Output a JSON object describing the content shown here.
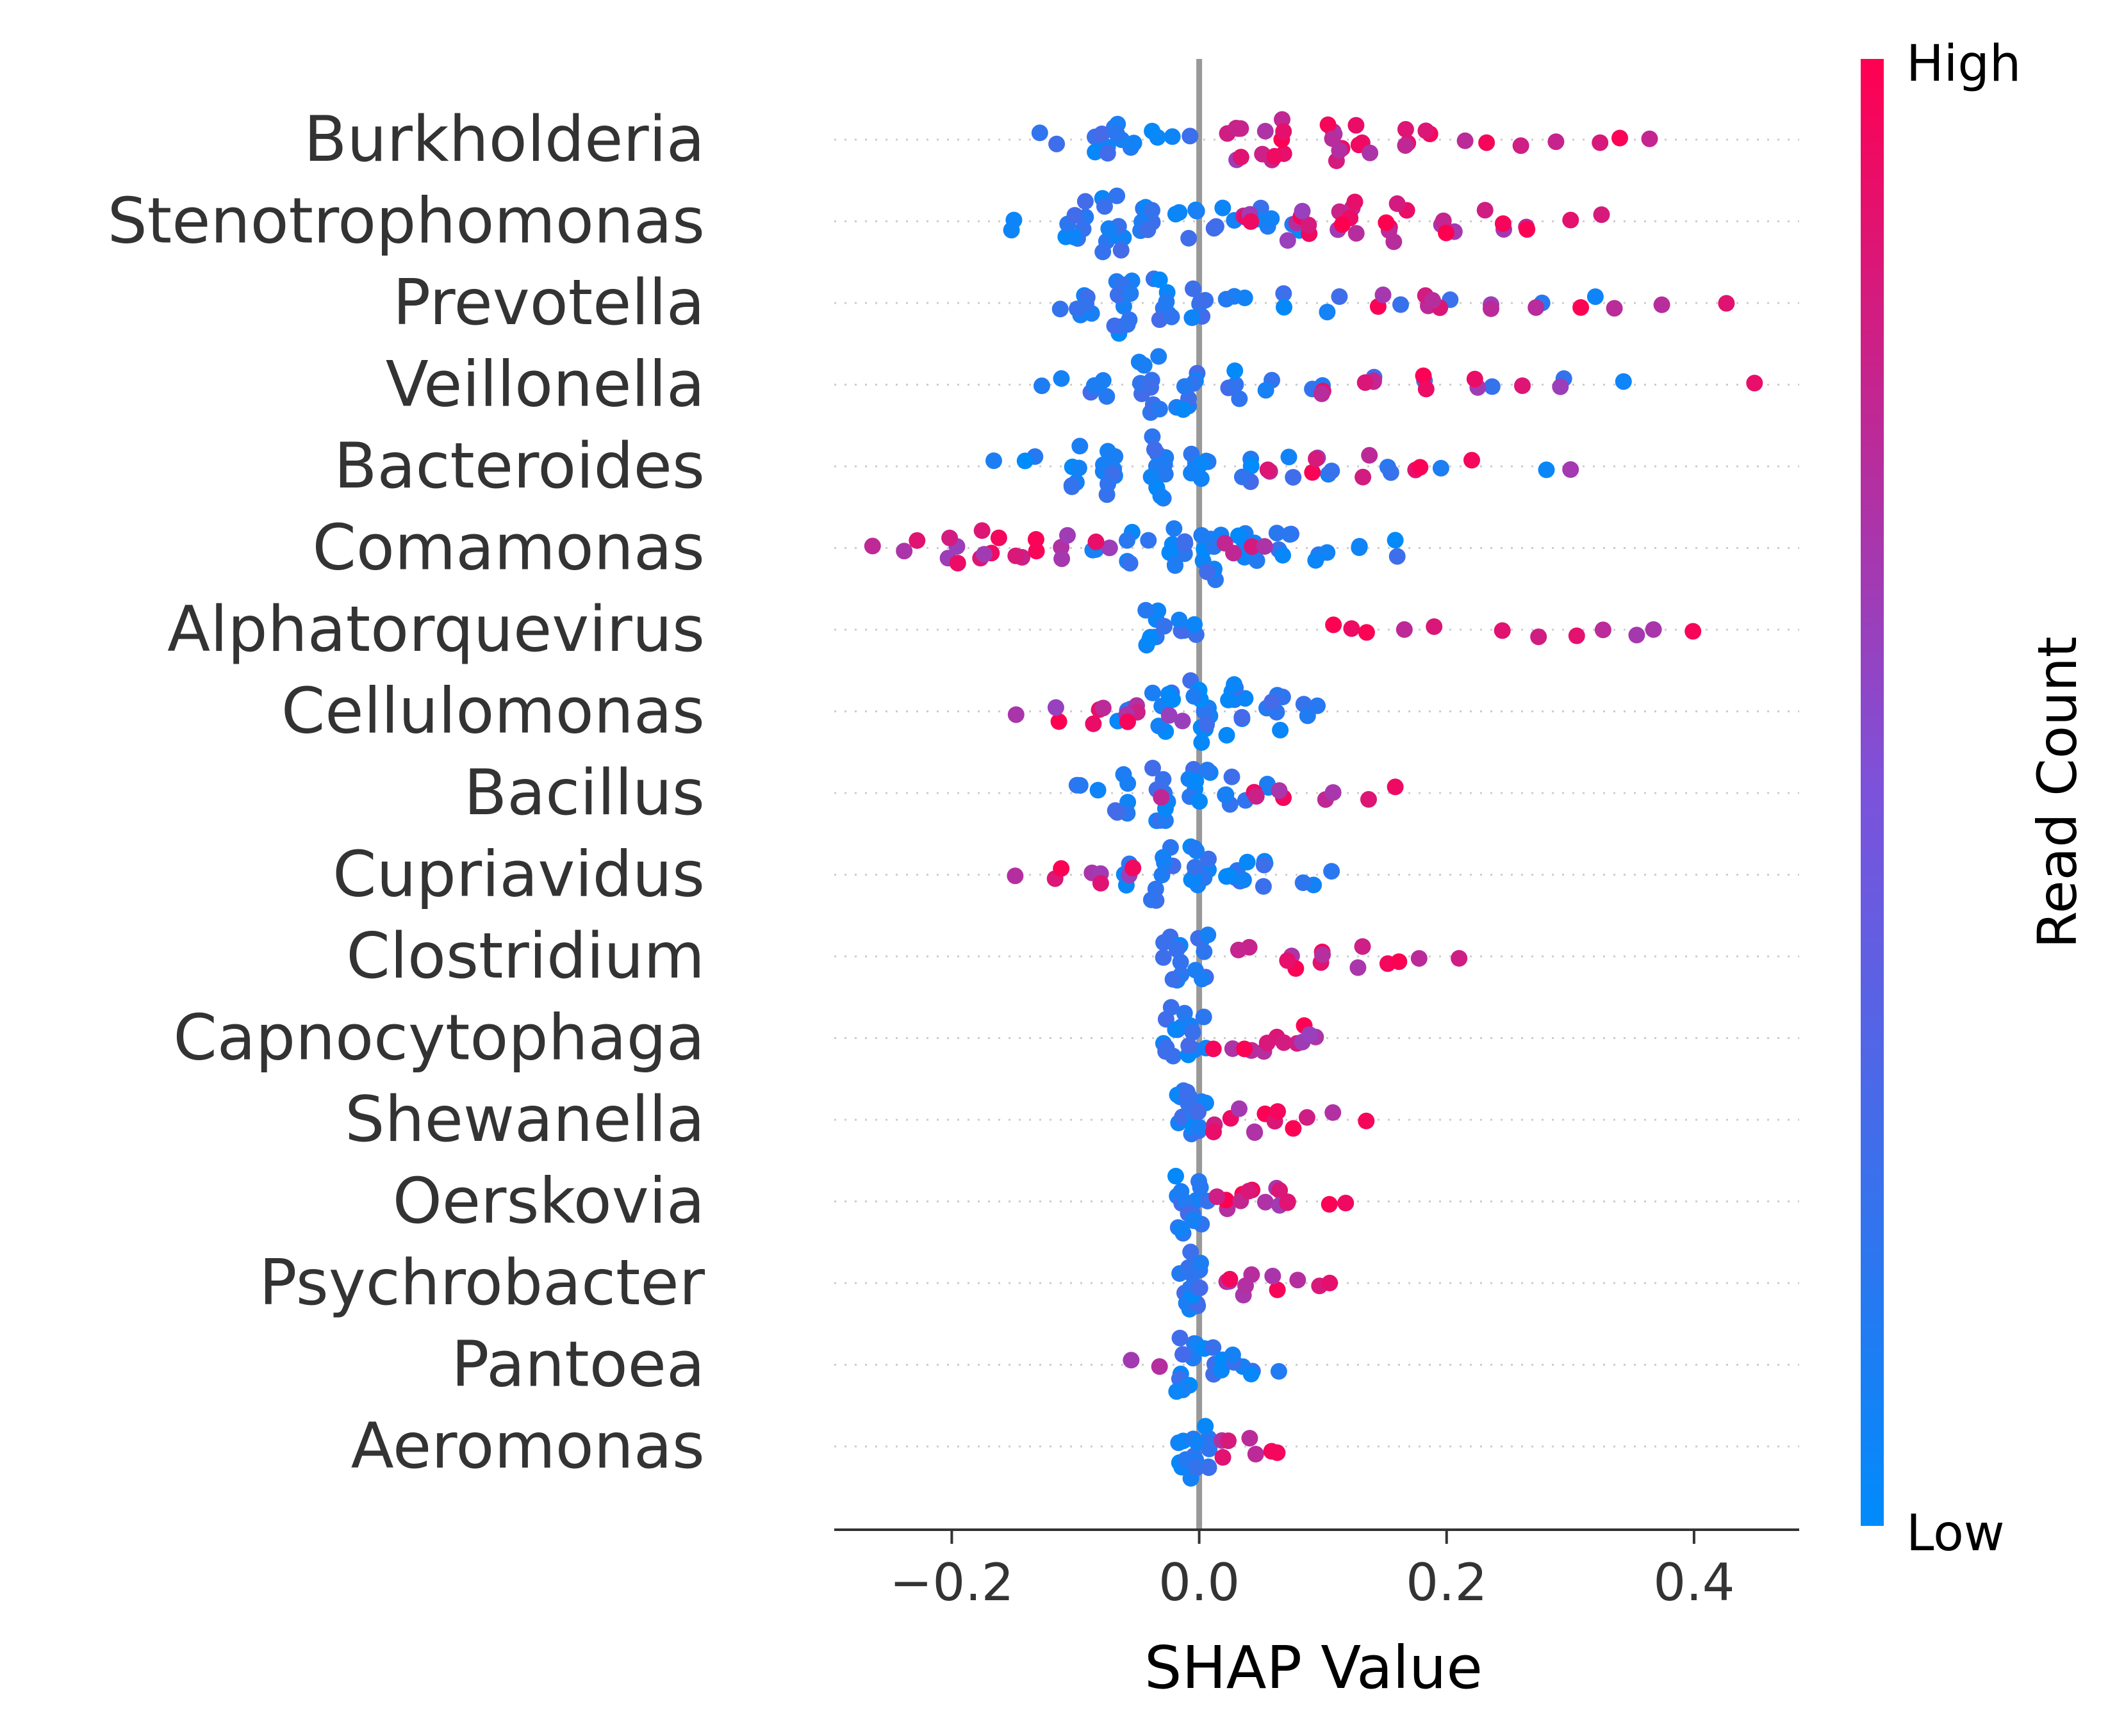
{
  "chart_data": {
    "type": "scatter",
    "subtype": "shap-beeswarm",
    "xlabel": "SHAP Value",
    "ylabel": "",
    "xlim": [
      -0.295,
      0.485
    ],
    "xticks": [
      -0.2,
      0.0,
      0.2,
      0.4
    ],
    "xtick_labels": [
      "−0.2",
      "0.0",
      "0.2",
      "0.4"
    ],
    "grid": false,
    "zero_line": 0.0,
    "colorbar": {
      "label": "Read Count",
      "high_label": "High",
      "low_label": "Low",
      "low_color": "#008bfb",
      "high_color": "#ff0051"
    },
    "features": [
      {
        "name": "Burkholderia",
        "low": [
          [
            -0.12,
            0.1
          ],
          [
            -0.08,
            0.3
          ],
          [
            -0.06,
            0.3
          ],
          [
            -0.03,
            0.15
          ],
          [
            -0.01,
            0.05
          ]
        ],
        "high": [
          [
            0.03,
            0.3
          ],
          [
            0.06,
            0.4
          ],
          [
            0.11,
            0.35
          ],
          [
            0.13,
            0.2
          ],
          [
            0.16,
            0.15
          ],
          [
            0.18,
            0.08
          ],
          [
            0.21,
            0.05
          ],
          [
            0.24,
            0.03
          ],
          [
            0.26,
            0.02
          ],
          [
            0.28,
            0.02
          ],
          [
            0.32,
            0.02
          ],
          [
            0.34,
            0.02
          ],
          [
            0.37,
            0.02
          ]
        ]
      },
      {
        "name": "Stenotrophomonas",
        "low": [
          [
            -0.15,
            0.1
          ],
          [
            -0.1,
            0.4
          ],
          [
            -0.07,
            0.5
          ],
          [
            -0.04,
            0.35
          ],
          [
            -0.01,
            0.25
          ],
          [
            0.02,
            0.2
          ],
          [
            0.05,
            0.2
          ],
          [
            0.08,
            0.1
          ]
        ],
        "high": [
          [
            0.04,
            0.2
          ],
          [
            0.08,
            0.3
          ],
          [
            0.12,
            0.35
          ],
          [
            0.16,
            0.3
          ],
          [
            0.2,
            0.22
          ],
          [
            0.24,
            0.15
          ],
          [
            0.27,
            0.08
          ],
          [
            0.3,
            0.05
          ],
          [
            0.32,
            0.03
          ]
        ]
      },
      {
        "name": "Prevotella",
        "low": [
          [
            -0.12,
            0.05
          ],
          [
            -0.09,
            0.3
          ],
          [
            -0.06,
            0.6
          ],
          [
            -0.03,
            0.4
          ],
          [
            0.0,
            0.3
          ],
          [
            0.03,
            0.15
          ],
          [
            0.07,
            0.1
          ],
          [
            0.11,
            0.08
          ],
          [
            0.16,
            0.07
          ],
          [
            0.21,
            0.05
          ],
          [
            0.27,
            0.03
          ],
          [
            0.32,
            0.03
          ]
        ],
        "high": [
          [
            0.15,
            0.12
          ],
          [
            0.19,
            0.18
          ],
          [
            0.23,
            0.12
          ],
          [
            0.28,
            0.06
          ],
          [
            0.31,
            0.04
          ],
          [
            0.33,
            0.03
          ],
          [
            0.37,
            0.02
          ],
          [
            0.43,
            0.01
          ]
        ]
      },
      {
        "name": "Veillonella",
        "low": [
          [
            -0.12,
            0.08
          ],
          [
            -0.08,
            0.25
          ],
          [
            -0.04,
            0.55
          ],
          [
            -0.01,
            0.4
          ],
          [
            0.03,
            0.2
          ],
          [
            0.06,
            0.1
          ],
          [
            0.1,
            0.08
          ],
          [
            0.14,
            0.07
          ],
          [
            0.18,
            0.06
          ],
          [
            0.24,
            0.05
          ],
          [
            0.3,
            0.03
          ],
          [
            0.34,
            0.02
          ]
        ],
        "high": [
          [
            0.1,
            0.1
          ],
          [
            0.14,
            0.15
          ],
          [
            0.18,
            0.12
          ],
          [
            0.22,
            0.1
          ],
          [
            0.26,
            0.07
          ],
          [
            0.29,
            0.04
          ],
          [
            0.45,
            0.01
          ]
        ]
      },
      {
        "name": "Bacteroides",
        "low": [
          [
            -0.17,
            0.05
          ],
          [
            -0.14,
            0.1
          ],
          [
            -0.1,
            0.3
          ],
          [
            -0.07,
            0.5
          ],
          [
            -0.03,
            0.7
          ],
          [
            0.0,
            0.4
          ],
          [
            0.04,
            0.2
          ],
          [
            0.07,
            0.12
          ],
          [
            0.11,
            0.1
          ],
          [
            0.15,
            0.08
          ],
          [
            0.2,
            0.05
          ],
          [
            0.28,
            0.02
          ]
        ],
        "high": [
          [
            0.06,
            0.1
          ],
          [
            0.1,
            0.15
          ],
          [
            0.14,
            0.12
          ],
          [
            0.18,
            0.1
          ],
          [
            0.22,
            0.06
          ],
          [
            0.3,
            0.02
          ]
        ]
      },
      {
        "name": "Comamonas",
        "low": [
          [
            -0.08,
            0.1
          ],
          [
            -0.05,
            0.25
          ],
          [
            -0.02,
            0.4
          ],
          [
            0.01,
            0.55
          ],
          [
            0.04,
            0.4
          ],
          [
            0.07,
            0.25
          ],
          [
            0.1,
            0.15
          ],
          [
            0.13,
            0.1
          ],
          [
            0.16,
            0.08
          ]
        ],
        "high": [
          [
            -0.26,
            0.05
          ],
          [
            -0.23,
            0.12
          ],
          [
            -0.2,
            0.2
          ],
          [
            -0.17,
            0.25
          ],
          [
            -0.14,
            0.2
          ],
          [
            -0.11,
            0.15
          ],
          [
            -0.08,
            0.1
          ],
          [
            0.02,
            0.1
          ],
          [
            0.05,
            0.08
          ]
        ]
      },
      {
        "name": "Alphatorquevirus",
        "low": [
          [
            -0.04,
            0.35
          ],
          [
            -0.02,
            0.2
          ],
          [
            0.0,
            0.08
          ]
        ],
        "high": [
          [
            0.1,
            0.04
          ],
          [
            0.12,
            0.06
          ],
          [
            0.14,
            0.06
          ],
          [
            0.17,
            0.05
          ],
          [
            0.19,
            0.04
          ],
          [
            0.24,
            0.05
          ],
          [
            0.27,
            0.05
          ],
          [
            0.3,
            0.05
          ],
          [
            0.33,
            0.04
          ],
          [
            0.35,
            0.02
          ],
          [
            0.37,
            0.03
          ],
          [
            0.4,
            0.02
          ]
        ]
      },
      {
        "name": "Cellulomonas",
        "low": [
          [
            -0.06,
            0.15
          ],
          [
            -0.03,
            0.35
          ],
          [
            0.0,
            0.55
          ],
          [
            0.03,
            0.45
          ],
          [
            0.06,
            0.3
          ],
          [
            0.09,
            0.15
          ]
        ],
        "high": [
          [
            -0.14,
            0.05
          ],
          [
            -0.11,
            0.1
          ],
          [
            -0.08,
            0.15
          ],
          [
            -0.05,
            0.2
          ],
          [
            -0.02,
            0.1
          ]
        ]
      },
      {
        "name": "Bacillus",
        "low": [
          [
            -0.09,
            0.15
          ],
          [
            -0.06,
            0.3
          ],
          [
            -0.03,
            0.45
          ],
          [
            0.0,
            0.4
          ],
          [
            0.03,
            0.25
          ],
          [
            0.06,
            0.12
          ]
        ],
        "high": [
          [
            -0.03,
            0.05
          ],
          [
            0.04,
            0.1
          ],
          [
            0.07,
            0.12
          ],
          [
            0.1,
            0.08
          ],
          [
            0.13,
            0.05
          ],
          [
            0.15,
            0.03
          ]
        ]
      },
      {
        "name": "Cupriavidus",
        "low": [
          [
            -0.06,
            0.2
          ],
          [
            -0.03,
            0.45
          ],
          [
            0.0,
            0.55
          ],
          [
            0.03,
            0.35
          ],
          [
            0.06,
            0.2
          ],
          [
            0.09,
            0.12
          ],
          [
            0.11,
            0.05
          ]
        ],
        "high": [
          [
            -0.14,
            0.06
          ],
          [
            -0.11,
            0.12
          ],
          [
            -0.08,
            0.15
          ],
          [
            -0.05,
            0.12
          ]
        ]
      },
      {
        "name": "Clostridium",
        "low": [
          [
            -0.02,
            0.45
          ],
          [
            0.0,
            0.35
          ]
        ],
        "high": [
          [
            0.04,
            0.1
          ],
          [
            0.07,
            0.14
          ],
          [
            0.1,
            0.14
          ],
          [
            0.13,
            0.12
          ],
          [
            0.16,
            0.1
          ],
          [
            0.18,
            0.07
          ],
          [
            0.21,
            0.03
          ]
        ]
      },
      {
        "name": "Capnocytophaga",
        "low": [
          [
            -0.02,
            0.5
          ],
          [
            0.0,
            0.35
          ]
        ],
        "high": [
          [
            0.02,
            0.12
          ],
          [
            0.04,
            0.15
          ],
          [
            0.06,
            0.18
          ],
          [
            0.08,
            0.15
          ],
          [
            0.09,
            0.08
          ]
        ]
      },
      {
        "name": "Shewanella",
        "low": [
          [
            -0.01,
            0.5
          ],
          [
            0.0,
            0.4
          ]
        ],
        "high": [
          [
            0.02,
            0.15
          ],
          [
            0.04,
            0.15
          ],
          [
            0.06,
            0.15
          ],
          [
            0.08,
            0.12
          ],
          [
            0.1,
            0.05
          ],
          [
            0.14,
            0.02
          ]
        ]
      },
      {
        "name": "Oerskovia",
        "low": [
          [
            -0.01,
            0.55
          ],
          [
            0.0,
            0.35
          ]
        ],
        "high": [
          [
            0.02,
            0.15
          ],
          [
            0.04,
            0.18
          ],
          [
            0.06,
            0.18
          ],
          [
            0.08,
            0.12
          ],
          [
            0.1,
            0.05
          ],
          [
            0.12,
            0.02
          ]
        ]
      },
      {
        "name": "Psychrobacter",
        "low": [
          [
            -0.01,
            0.55
          ],
          [
            0.0,
            0.35
          ]
        ],
        "high": [
          [
            0.02,
            0.15
          ],
          [
            0.04,
            0.15
          ],
          [
            0.06,
            0.1
          ],
          [
            0.08,
            0.06
          ],
          [
            0.1,
            0.05
          ],
          [
            0.11,
            0.02
          ]
        ]
      },
      {
        "name": "Pantoea",
        "low": [
          [
            -0.01,
            0.5
          ],
          [
            0.01,
            0.3
          ],
          [
            0.03,
            0.15
          ],
          [
            0.05,
            0.1
          ],
          [
            0.07,
            0.04
          ]
        ],
        "high": [
          [
            -0.05,
            0.04
          ],
          [
            -0.03,
            0.05
          ]
        ]
      },
      {
        "name": "Aeromonas",
        "low": [
          [
            -0.01,
            0.55
          ],
          [
            0.0,
            0.4
          ]
        ],
        "high": [
          [
            0.02,
            0.15
          ],
          [
            0.04,
            0.12
          ],
          [
            0.06,
            0.08
          ]
        ]
      }
    ]
  }
}
